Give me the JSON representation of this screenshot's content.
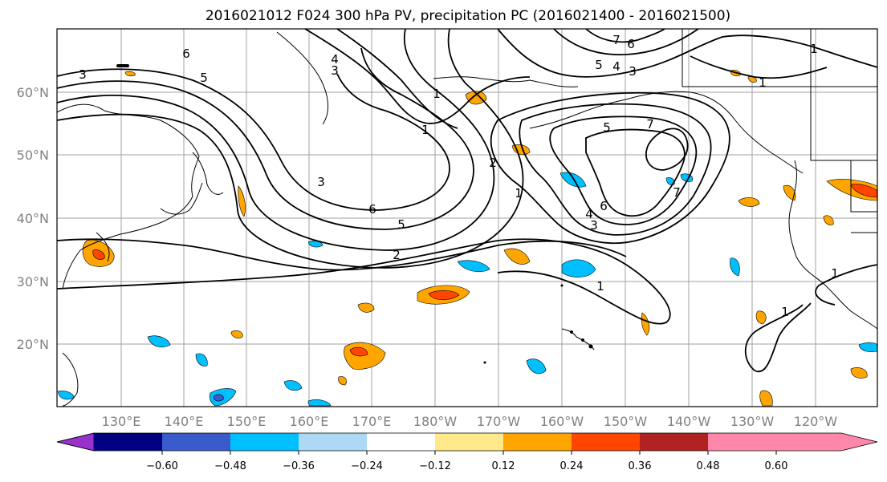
{
  "title": "2016021012 F024 300 hPa PV, precipitation PC (2016021400 - 2016021500)",
  "lon_labels": [
    "130°E",
    "140°E",
    "150°E",
    "160°E",
    "170°E",
    "180°W",
    "170°W",
    "160°W",
    "150°W",
    "140°W",
    "130°W",
    "120°W"
  ],
  "lat_labels": [
    "60°N",
    "50°N",
    "40°N",
    "30°N",
    "20°N"
  ],
  "colorbar": {
    "colors": [
      "#9932CC",
      "#000080",
      "#3A5BCC",
      "#00BFFF",
      "#ADD8F6",
      "#FFFFFF",
      "#FFE98A",
      "#FFA500",
      "#FF4500",
      "#B22222",
      "#FF88AA"
    ],
    "tick_labels": [
      "−0.60",
      "−0.48",
      "−0.36",
      "−0.24",
      "−0.12",
      "0.12",
      "0.24",
      "0.36",
      "0.48",
      "0.60"
    ]
  },
  "contour_labels": [
    "3",
    "6",
    "5",
    "4",
    "3",
    "1",
    "7",
    "6",
    "5",
    "4",
    "3",
    "1",
    "5",
    "7",
    "1",
    "2",
    "3",
    "6",
    "5",
    "2",
    "1",
    "6",
    "4",
    "3",
    "7",
    "1",
    "1",
    "1",
    "1"
  ]
}
